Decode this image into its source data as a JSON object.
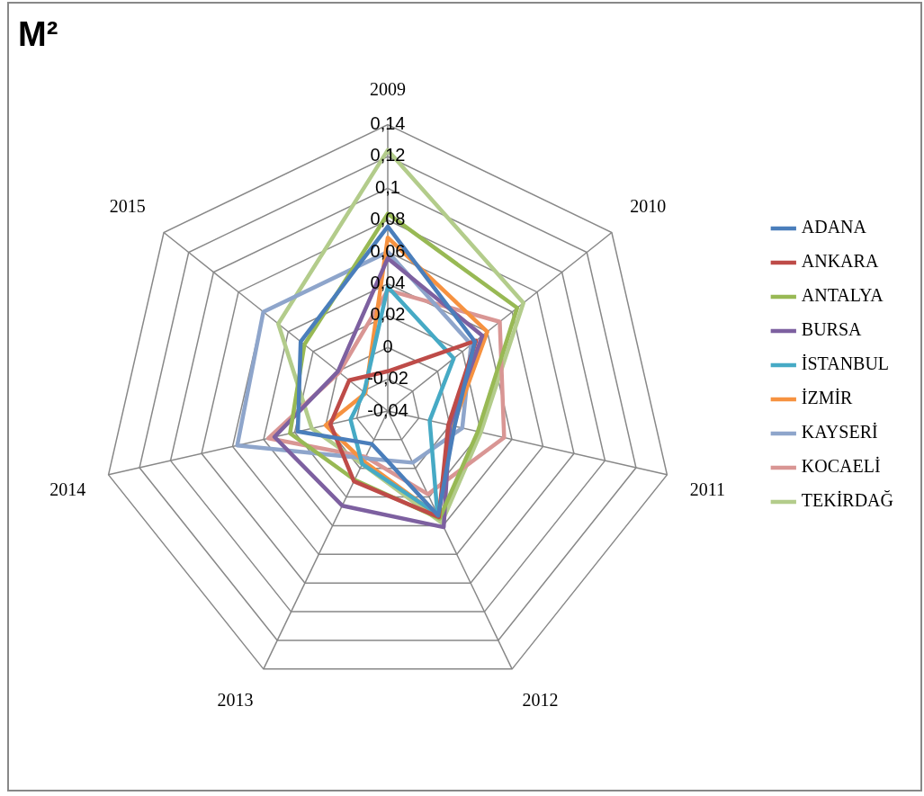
{
  "chart_data": {
    "type": "radar",
    "title": "M²",
    "categories": [
      "2009",
      "2010",
      "2011",
      "2012",
      "2013",
      "2014",
      "2015"
    ],
    "ylim": [
      -0.04,
      0.14
    ],
    "yticks": [
      {
        "value": -0.04,
        "label": "-0,04"
      },
      {
        "value": -0.02,
        "label": "-0,02"
      },
      {
        "value": 0,
        "label": "0"
      },
      {
        "value": 0.02,
        "label": "0,02"
      },
      {
        "value": 0.04,
        "label": "0,04"
      },
      {
        "value": 0.06,
        "label": "0,06"
      },
      {
        "value": 0.08,
        "label": "0,08"
      },
      {
        "value": 0.1,
        "label": "0,1"
      },
      {
        "value": 0.12,
        "label": "0,12"
      },
      {
        "value": 0.14,
        "label": "0,14"
      }
    ],
    "grid": true,
    "legend": "right",
    "marker": "none",
    "series": [
      {
        "name": "ADANA",
        "color": "#4a7ebb",
        "values": [
          0.076,
          0.03,
          0.003,
          0.033,
          -0.017,
          0.018,
          0.03
        ]
      },
      {
        "name": "ANKARA",
        "color": "#be4b48",
        "values": [
          -0.015,
          0.031,
          -0.001,
          0.034,
          0.009,
          -0.003,
          -0.009
        ]
      },
      {
        "name": "ANTALYA",
        "color": "#98b954",
        "values": [
          0.084,
          0.064,
          0.018,
          0.035,
          0.008,
          0.023,
          0.027
        ]
      },
      {
        "name": "BURSA",
        "color": "#7d60a0",
        "values": [
          0.056,
          0.036,
          0.0,
          0.041,
          0.026,
          0.033,
          0.0
        ]
      },
      {
        "name": "İSTANBUL",
        "color": "#46aac5",
        "values": [
          0.038,
          0.013,
          -0.013,
          0.032,
          -0.003,
          -0.016,
          -0.021
        ]
      },
      {
        "name": "İZMİR",
        "color": "#f69240",
        "values": [
          0.069,
          0.04,
          0.002,
          0.033,
          -0.005,
          0.0,
          -0.022
        ]
      },
      {
        "name": "KAYSERİ",
        "color": "#8ea5cb",
        "values": [
          0.06,
          0.027,
          0.008,
          -0.004,
          -0.007,
          0.057,
          0.06
        ]
      },
      {
        "name": "KOCAELİ",
        "color": "#d99694",
        "values": [
          0.036,
          0.05,
          0.035,
          0.018,
          -0.008,
          0.037,
          -0.001
        ]
      },
      {
        "name": "TEKİRDAĞ",
        "color": "#b3cc8b",
        "values": [
          0.124,
          0.069,
          0.02,
          0.038,
          -0.003,
          0.009,
          0.048
        ]
      }
    ]
  }
}
